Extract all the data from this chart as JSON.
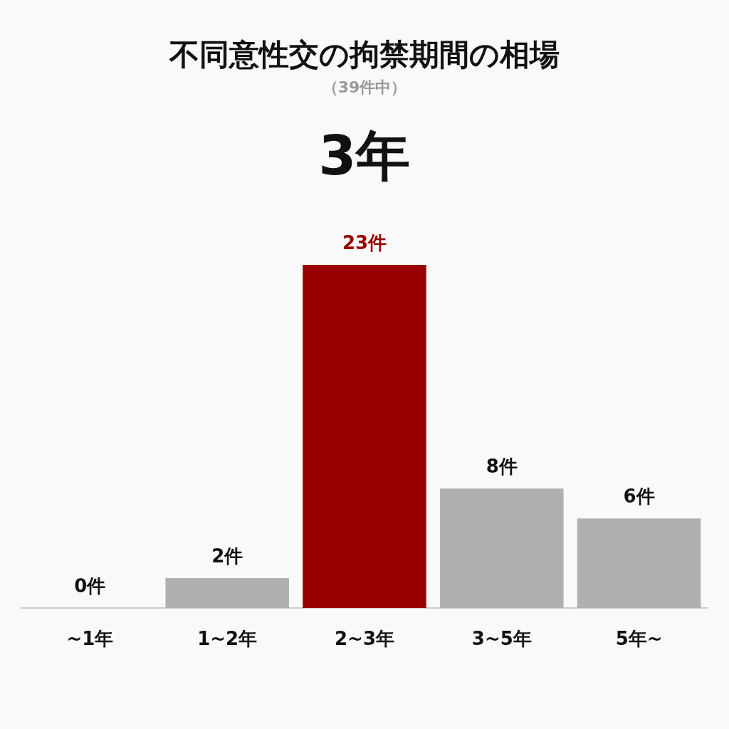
{
  "chart_data": {
    "type": "bar",
    "title": "不同意性交の拘禁期間の相場",
    "subtitle": "（39件中）",
    "annotations": [
      "3年"
    ],
    "categories": [
      "~1年",
      "1~2年",
      "2~3年",
      "3~5年",
      "5年~"
    ],
    "values": [
      0,
      2,
      23,
      8,
      6
    ],
    "colors": [
      "#b0b0b0",
      "#b0b0b0",
      "#990000",
      "#b0b0b0",
      "#b0b0b0"
    ],
    "value_labels": [
      "0件",
      "2件",
      "23件",
      "8件",
      "6件"
    ]
  }
}
